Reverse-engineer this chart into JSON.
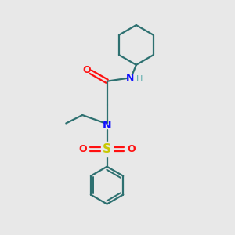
{
  "bg_color": "#e8e8e8",
  "bond_color": "#2d7070",
  "nitrogen_color": "#1010ff",
  "oxygen_color": "#ff1010",
  "sulfur_color": "#c8c800",
  "hydrogen_color": "#5aabab",
  "figsize": [
    3.0,
    3.0
  ],
  "dpi": 100,
  "xlim": [
    0,
    10
  ],
  "ylim": [
    0,
    10
  ]
}
